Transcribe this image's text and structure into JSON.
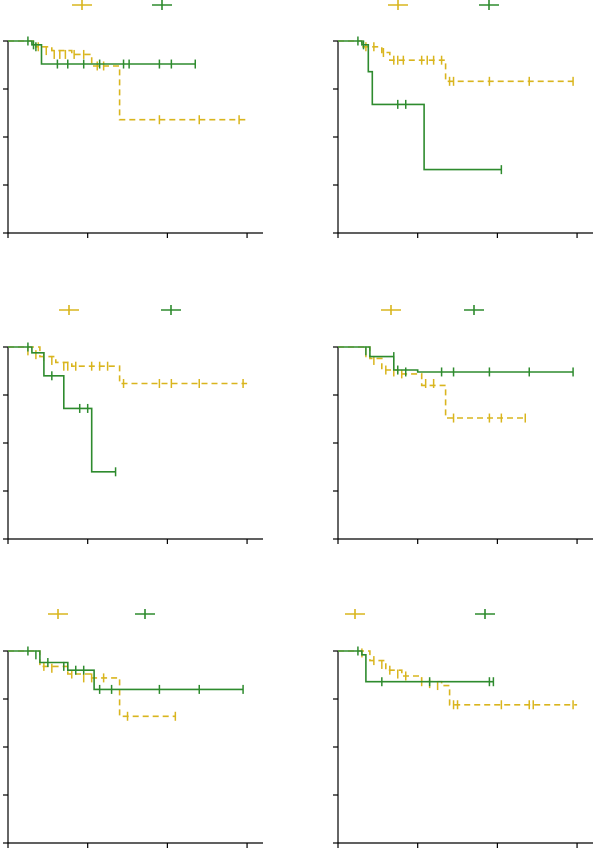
{
  "colors": {
    "group_a": "#d9b51e",
    "group_b": "#2e8b2e",
    "axis": "#000000"
  },
  "chart_data": [
    {
      "type": "line",
      "title": "",
      "xlabel": "",
      "ylabel": "",
      "xlim": [
        0,
        3.2
      ],
      "ylim": [
        0,
        1
      ],
      "legend": "top",
      "series": [
        {
          "style": "dashed",
          "steps": [
            [
              0,
              1.0
            ],
            [
              0.35,
              0.97
            ],
            [
              0.55,
              0.95
            ],
            [
              0.8,
              0.93
            ],
            [
              1.05,
              0.87
            ],
            [
              1.4,
              0.59
            ],
            [
              3.0,
              0.59
            ]
          ],
          "censors": [
            [
              0.38,
              0.97
            ],
            [
              0.48,
              0.95
            ],
            [
              0.58,
              0.93
            ],
            [
              0.65,
              0.93
            ],
            [
              0.72,
              0.93
            ],
            [
              0.83,
              0.93
            ],
            [
              0.95,
              0.93
            ],
            [
              1.12,
              0.87
            ],
            [
              1.2,
              0.87
            ],
            [
              1.9,
              0.59
            ],
            [
              2.4,
              0.59
            ],
            [
              2.9,
              0.59
            ]
          ]
        },
        {
          "style": "solid",
          "steps": [
            [
              0,
              1.0
            ],
            [
              0.3,
              0.98
            ],
            [
              0.42,
              0.88
            ],
            [
              2.35,
              0.88
            ]
          ],
          "censors": [
            [
              0.25,
              1.0
            ],
            [
              0.32,
              0.98
            ],
            [
              0.35,
              0.97
            ],
            [
              0.62,
              0.88
            ],
            [
              0.75,
              0.88
            ],
            [
              0.95,
              0.88
            ],
            [
              1.15,
              0.88
            ],
            [
              1.45,
              0.88
            ],
            [
              1.52,
              0.88
            ],
            [
              1.9,
              0.88
            ],
            [
              2.05,
              0.88
            ],
            [
              2.35,
              0.88
            ]
          ]
        }
      ]
    },
    {
      "type": "line",
      "title": "",
      "xlabel": "",
      "ylabel": "",
      "xlim": [
        0,
        3.2
      ],
      "ylim": [
        0,
        1
      ],
      "legend": "top",
      "series": [
        {
          "style": "dashed",
          "steps": [
            [
              0,
              1.0
            ],
            [
              0.3,
              0.97
            ],
            [
              0.55,
              0.94
            ],
            [
              0.65,
              0.9
            ],
            [
              0.9,
              0.9
            ],
            [
              1.35,
              0.79
            ],
            [
              2.95,
              0.79
            ]
          ],
          "censors": [
            [
              0.35,
              0.97
            ],
            [
              0.45,
              0.97
            ],
            [
              0.57,
              0.94
            ],
            [
              0.7,
              0.9
            ],
            [
              0.75,
              0.9
            ],
            [
              0.82,
              0.9
            ],
            [
              1.05,
              0.9
            ],
            [
              1.12,
              0.9
            ],
            [
              1.2,
              0.9
            ],
            [
              1.3,
              0.9
            ],
            [
              1.4,
              0.79
            ],
            [
              1.45,
              0.79
            ],
            [
              1.9,
              0.79
            ],
            [
              2.4,
              0.79
            ],
            [
              2.95,
              0.79
            ]
          ]
        },
        {
          "style": "solid",
          "steps": [
            [
              0,
              1.0
            ],
            [
              0.3,
              0.98
            ],
            [
              0.38,
              0.84
            ],
            [
              0.43,
              0.67
            ],
            [
              1.08,
              0.67
            ],
            [
              1.08,
              0.33
            ],
            [
              2.05,
              0.33
            ]
          ],
          "censors": [
            [
              0.25,
              1.0
            ],
            [
              0.32,
              0.98
            ],
            [
              0.75,
              0.67
            ],
            [
              0.85,
              0.67
            ],
            [
              2.05,
              0.33
            ]
          ]
        }
      ]
    },
    {
      "type": "line",
      "title": "",
      "xlabel": "",
      "ylabel": "",
      "xlim": [
        0,
        3.2
      ],
      "ylim": [
        0,
        1
      ],
      "legend": "top",
      "series": [
        {
          "style": "dashed",
          "steps": [
            [
              0,
              1.0
            ],
            [
              0.4,
              0.95
            ],
            [
              0.6,
              0.92
            ],
            [
              0.8,
              0.9
            ],
            [
              1.3,
              0.9
            ],
            [
              1.4,
              0.81
            ],
            [
              3.0,
              0.81
            ]
          ],
          "censors": [
            [
              0.25,
              0.98
            ],
            [
              0.35,
              0.96
            ],
            [
              0.45,
              0.95
            ],
            [
              0.55,
              0.93
            ],
            [
              0.7,
              0.9
            ],
            [
              0.75,
              0.9
            ],
            [
              0.85,
              0.9
            ],
            [
              1.05,
              0.9
            ],
            [
              1.15,
              0.9
            ],
            [
              1.25,
              0.9
            ],
            [
              1.45,
              0.81
            ],
            [
              1.9,
              0.81
            ],
            [
              2.05,
              0.81
            ],
            [
              2.4,
              0.81
            ],
            [
              2.95,
              0.81
            ]
          ]
        },
        {
          "style": "solid",
          "steps": [
            [
              0,
              1.0
            ],
            [
              0.3,
              0.97
            ],
            [
              0.45,
              0.85
            ],
            [
              0.7,
              0.85
            ],
            [
              0.7,
              0.68
            ],
            [
              1.05,
              0.68
            ],
            [
              1.05,
              0.35
            ],
            [
              1.35,
              0.35
            ]
          ],
          "censors": [
            [
              0.25,
              1.0
            ],
            [
              0.55,
              0.85
            ],
            [
              0.9,
              0.68
            ],
            [
              1.0,
              0.68
            ],
            [
              1.35,
              0.35
            ]
          ]
        }
      ]
    },
    {
      "type": "line",
      "title": "",
      "xlabel": "",
      "ylabel": "",
      "xlim": [
        0,
        3.2
      ],
      "ylim": [
        0,
        1
      ],
      "legend": "top",
      "series": [
        {
          "style": "dashed",
          "steps": [
            [
              0,
              1.0
            ],
            [
              0.4,
              0.94
            ],
            [
              0.55,
              0.88
            ],
            [
              0.75,
              0.86
            ],
            [
              1.05,
              0.86
            ],
            [
              1.05,
              0.8
            ],
            [
              1.3,
              0.8
            ],
            [
              1.35,
              0.63
            ],
            [
              2.35,
              0.63
            ]
          ],
          "censors": [
            [
              0.35,
              0.97
            ],
            [
              0.45,
              0.93
            ],
            [
              0.6,
              0.88
            ],
            [
              0.7,
              0.87
            ],
            [
              0.8,
              0.86
            ],
            [
              1.1,
              0.81
            ],
            [
              1.2,
              0.81
            ],
            [
              1.45,
              0.63
            ],
            [
              1.9,
              0.63
            ],
            [
              2.05,
              0.63
            ],
            [
              2.35,
              0.63
            ]
          ]
        },
        {
          "style": "solid",
          "steps": [
            [
              0,
              1.0
            ],
            [
              0.4,
              0.95
            ],
            [
              0.7,
              0.88
            ],
            [
              1.0,
              0.87
            ],
            [
              2.95,
              0.87
            ]
          ],
          "censors": [
            [
              0.35,
              0.98
            ],
            [
              0.7,
              0.95
            ],
            [
              0.75,
              0.88
            ],
            [
              0.85,
              0.87
            ],
            [
              1.3,
              0.87
            ],
            [
              1.45,
              0.87
            ],
            [
              1.9,
              0.87
            ],
            [
              2.4,
              0.87
            ],
            [
              2.95,
              0.87
            ]
          ]
        }
      ]
    },
    {
      "type": "line",
      "title": "",
      "xlabel": "",
      "ylabel": "",
      "xlim": [
        0,
        3.2
      ],
      "ylim": [
        0,
        1
      ],
      "legend": "top",
      "series": [
        {
          "style": "dashed",
          "steps": [
            [
              0,
              1.0
            ],
            [
              0.4,
              0.92
            ],
            [
              0.75,
              0.88
            ],
            [
              1.05,
              0.86
            ],
            [
              1.4,
              0.66
            ],
            [
              2.1,
              0.66
            ]
          ],
          "censors": [
            [
              0.45,
              0.92
            ],
            [
              0.55,
              0.91
            ],
            [
              0.8,
              0.88
            ],
            [
              0.95,
              0.86
            ],
            [
              1.05,
              0.86
            ],
            [
              1.2,
              0.86
            ],
            [
              1.5,
              0.66
            ],
            [
              2.1,
              0.66
            ]
          ]
        },
        {
          "style": "solid",
          "steps": [
            [
              0,
              1.0
            ],
            [
              0.4,
              0.94
            ],
            [
              0.75,
              0.9
            ],
            [
              1.05,
              0.9
            ],
            [
              1.08,
              0.8
            ],
            [
              2.95,
              0.8
            ]
          ],
          "censors": [
            [
              0.25,
              1.0
            ],
            [
              0.35,
              0.98
            ],
            [
              0.5,
              0.94
            ],
            [
              0.7,
              0.92
            ],
            [
              0.85,
              0.9
            ],
            [
              0.95,
              0.9
            ],
            [
              1.15,
              0.8
            ],
            [
              1.3,
              0.8
            ],
            [
              1.9,
              0.8
            ],
            [
              2.4,
              0.8
            ],
            [
              2.95,
              0.8
            ]
          ]
        }
      ]
    },
    {
      "type": "line",
      "title": "",
      "xlabel": "",
      "ylabel": "",
      "xlim": [
        0,
        3.2
      ],
      "ylim": [
        0,
        1
      ],
      "legend": "top",
      "series": [
        {
          "style": "dashed",
          "steps": [
            [
              0,
              1.0
            ],
            [
              0.4,
              0.95
            ],
            [
              0.6,
              0.9
            ],
            [
              0.8,
              0.87
            ],
            [
              1.05,
              0.84
            ],
            [
              1.3,
              0.82
            ],
            [
              1.4,
              0.72
            ],
            [
              3.0,
              0.72
            ]
          ],
          "censors": [
            [
              0.3,
              0.99
            ],
            [
              0.45,
              0.95
            ],
            [
              0.55,
              0.93
            ],
            [
              0.65,
              0.9
            ],
            [
              0.75,
              0.88
            ],
            [
              0.85,
              0.87
            ],
            [
              1.05,
              0.84
            ],
            [
              1.15,
              0.83
            ],
            [
              1.25,
              0.82
            ],
            [
              1.45,
              0.72
            ],
            [
              1.5,
              0.72
            ],
            [
              2.05,
              0.72
            ],
            [
              2.4,
              0.72
            ],
            [
              2.45,
              0.72
            ],
            [
              2.95,
              0.72
            ]
          ]
        },
        {
          "style": "solid",
          "steps": [
            [
              0,
              1.0
            ],
            [
              0.3,
              0.98
            ],
            [
              0.35,
              0.84
            ],
            [
              1.95,
              0.84
            ]
          ],
          "censors": [
            [
              0.25,
              1.0
            ],
            [
              0.55,
              0.84
            ],
            [
              1.15,
              0.84
            ],
            [
              1.9,
              0.84
            ],
            [
              1.95,
              0.84
            ]
          ]
        }
      ]
    }
  ]
}
